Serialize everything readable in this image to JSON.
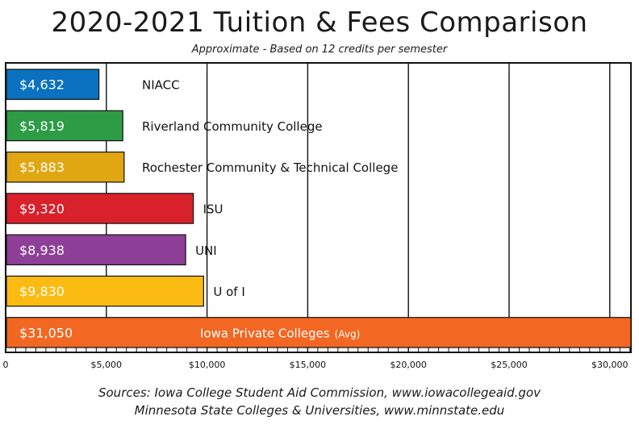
{
  "chart_data": {
    "type": "bar",
    "orientation": "horizontal",
    "title": "2020-2021 Tuition & Fees Comparison",
    "subtitle": "Approximate - Based on 12 credits per semester",
    "categories": [
      "NIACC",
      "Riverland Community College",
      "Rochester Community & Technical College",
      "ISU",
      "UNI",
      "U of I",
      "Iowa Private Colleges"
    ],
    "category_suffix": [
      "",
      "",
      "",
      "",
      "",
      "",
      "(Avg)"
    ],
    "values": [
      4632,
      5819,
      5883,
      9320,
      8938,
      9830,
      31050
    ],
    "value_labels": [
      "$4,632",
      "$5,819",
      "$5,883",
      "$9,320",
      "$8,938",
      "$9,830",
      "$31,050"
    ],
    "colors": [
      "#0a72c0",
      "#2e9b45",
      "#e1a713",
      "#d9212b",
      "#8e3f97",
      "#fbbb12",
      "#f26722"
    ],
    "xlim": [
      0,
      31050
    ],
    "xticks": [
      0,
      5000,
      10000,
      15000,
      20000,
      25000,
      30000
    ],
    "xtick_labels": [
      "0",
      "$5,000",
      "$10,000",
      "$15,000",
      "$20,000",
      "$25,000",
      "$30,000"
    ],
    "grid": true
  },
  "sources": {
    "line1": "Sources: Iowa College Student Aid Commission, www.iowacollegeaid.gov",
    "line2": "Minnesota State Colleges & Universities, www.minnstate.edu"
  }
}
